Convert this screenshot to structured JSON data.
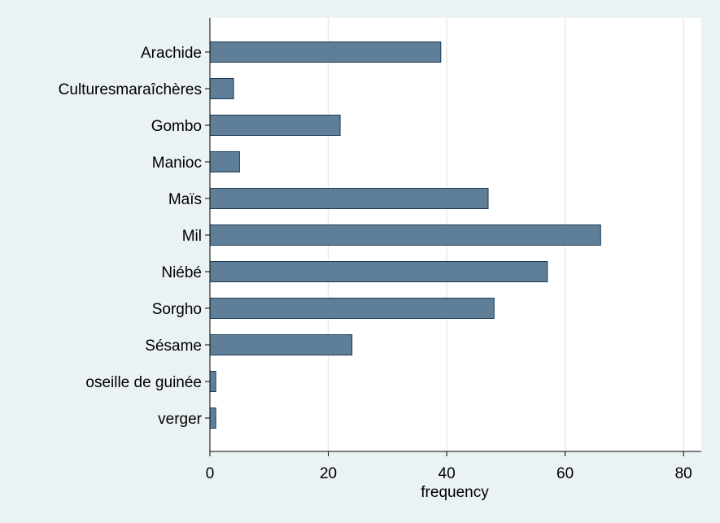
{
  "chart_data": {
    "type": "bar",
    "orientation": "horizontal",
    "categories": [
      "Arachide",
      "Culturesmaraîchères",
      "Gombo",
      "Manioc",
      "Maïs",
      "Mil",
      "Niébé",
      "Sorgho",
      "Sésame",
      "oseille de guinée",
      "verger"
    ],
    "values": [
      39,
      4,
      22,
      5,
      47,
      66,
      57,
      48,
      24,
      1,
      1
    ],
    "xlabel": "frequency",
    "ylabel": "",
    "xlim": [
      0,
      83
    ],
    "xticks": [
      "0",
      "20",
      "40",
      "60",
      "80"
    ],
    "grid": true,
    "colors": {
      "background": "#eaf2f3",
      "plot": "#ffffff",
      "bar": "#5f7f99",
      "bar_edge": "#1c3a55",
      "grid": "#e8eaea"
    }
  }
}
